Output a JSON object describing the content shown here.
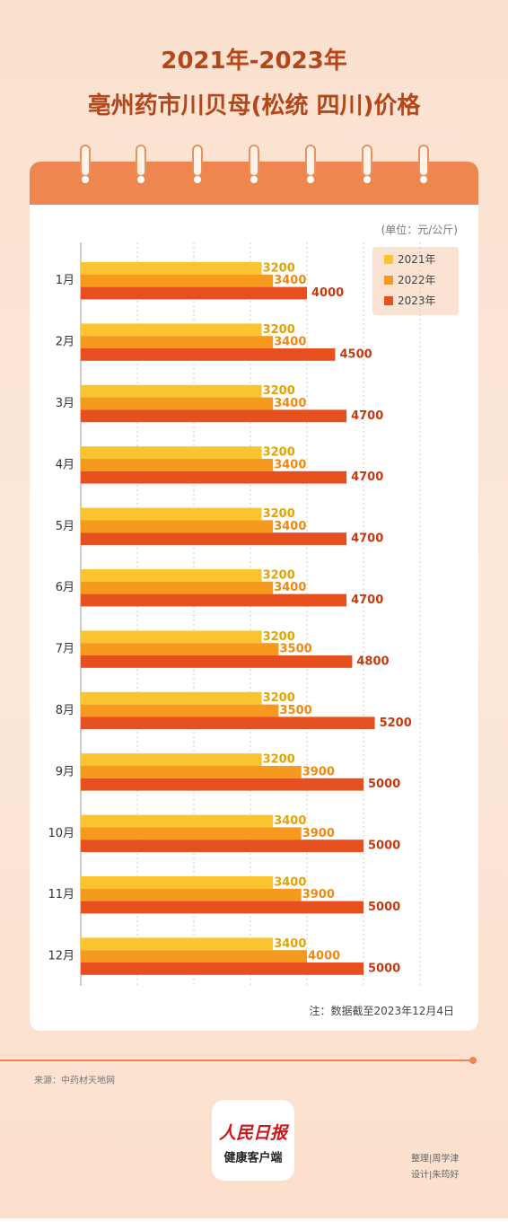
{
  "title": [
    "2021年-2023年",
    "亳州药市川贝母(松统 四川)价格"
  ],
  "unit": "(单位：元/公斤)",
  "note": "注：数据截至2023年12月4日",
  "source": "来源：中药材天地网",
  "logo": [
    "人民日报",
    "健康客户端"
  ],
  "credits": [
    "整理|周学津",
    "设计|朱筠好"
  ],
  "chart_data": {
    "type": "bar",
    "orientation": "horizontal",
    "categories": [
      "1月",
      "2月",
      "3月",
      "4月",
      "5月",
      "6月",
      "7月",
      "8月",
      "9月",
      "10月",
      "11月",
      "12月"
    ],
    "series": [
      {
        "name": "2021年",
        "color": "#f9c430",
        "label_color": "#e3a400",
        "values": [
          3200,
          3200,
          3200,
          3200,
          3200,
          3200,
          3200,
          3200,
          3200,
          3400,
          3400,
          3400
        ]
      },
      {
        "name": "2022年",
        "color": "#f59a1e",
        "label_color": "#ee8a10",
        "values": [
          3400,
          3400,
          3400,
          3400,
          3400,
          3400,
          3500,
          3500,
          3900,
          3900,
          3900,
          4000
        ]
      },
      {
        "name": "2023年",
        "color": "#e6501e",
        "label_color": "#c53a10",
        "values": [
          4000,
          4500,
          4700,
          4700,
          4700,
          4700,
          4800,
          5200,
          5000,
          5000,
          5000,
          5000
        ]
      }
    ],
    "xlim": [
      0,
      6000
    ],
    "xticks": [
      0,
      1000,
      2000,
      3000,
      4000,
      5000,
      6000
    ],
    "grid": true
  }
}
